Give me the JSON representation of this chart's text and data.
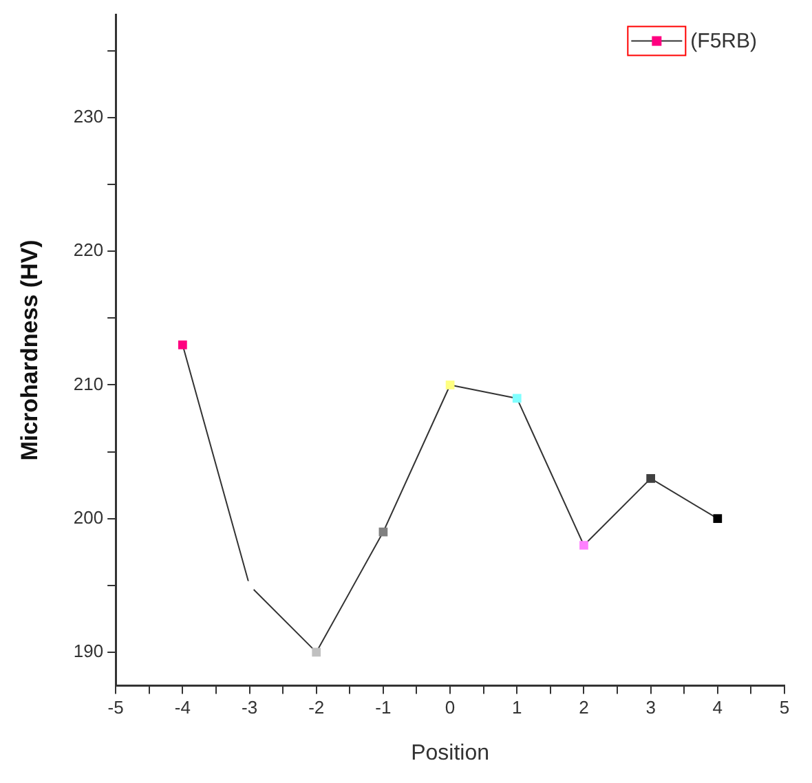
{
  "chart_data": {
    "type": "line",
    "xlabel": "Position",
    "ylabel": "Microhardness (HV)",
    "x": [
      -4,
      -3,
      -2,
      -1,
      0,
      1,
      2,
      3,
      4
    ],
    "series": [
      {
        "name": "(F5RB)",
        "color": "#333333",
        "colors": [
          "#ff0080",
          "#ffffff",
          "#c0c0c0",
          "#808080",
          "#ffff80",
          "#80ffff",
          "#ff80ff",
          "#404040",
          "#000000"
        ],
        "values": [
          213,
          195,
          190,
          199,
          210,
          209,
          198,
          203,
          200
        ]
      }
    ],
    "xlim": [
      -5,
      5
    ],
    "xticks": [
      -5,
      {
        "value": -4.5,
        "label": null
      },
      -4,
      {
        "value": -3.5,
        "label": null
      },
      -3,
      {
        "value": -2.5,
        "label": null
      },
      -2,
      {
        "value": -1.5,
        "label": null
      },
      -1,
      {
        "value": -0.5,
        "label": null
      },
      0,
      {
        "value": 0.5,
        "label": null
      },
      1,
      {
        "value": 1.5,
        "label": null
      },
      2,
      {
        "value": 2.5,
        "label": null
      },
      3,
      {
        "value": 3.5,
        "label": null
      },
      4,
      {
        "value": 4.5,
        "label": null
      },
      5
    ],
    "ylim": [
      187.5,
      237.7
    ],
    "yticks": [
      190,
      {
        "value": 195,
        "label": null
      },
      200,
      {
        "value": 205,
        "label": null
      },
      210,
      {
        "value": 215,
        "label": null
      },
      220,
      {
        "value": 225,
        "label": null
      },
      230,
      {
        "value": 235,
        "label": null
      }
    ],
    "grid": false,
    "legend": "top right",
    "marker": "square",
    "line_style": "solid"
  }
}
